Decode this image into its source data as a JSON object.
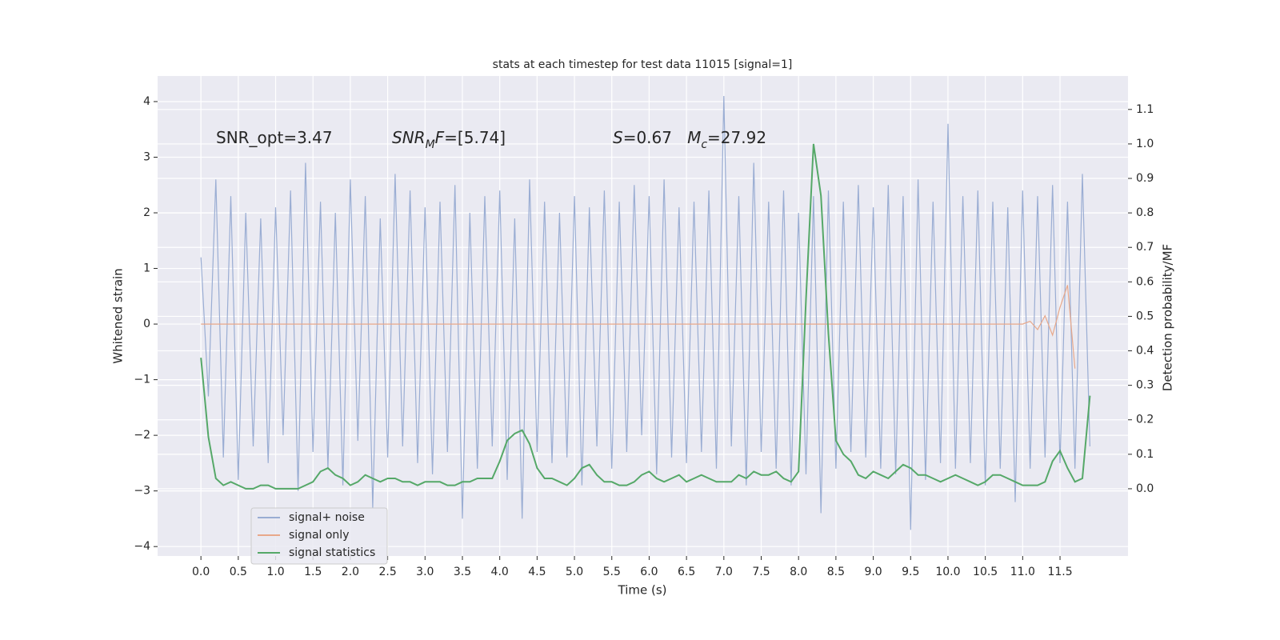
{
  "chart_data": {
    "type": "line",
    "title": "stats at each timestep for test data 11015 [signal=1]",
    "xlabel": "Time (s)",
    "ylabel": "Whitened strain",
    "y2label": "Detection probability/MF",
    "annotations": [
      [
        {
          "text": "SNR_opt=3.47"
        }
      ],
      [
        {
          "text": "SNR",
          "italic": true
        },
        {
          "text": "M",
          "italic": true,
          "sub": true
        },
        {
          "text": "F",
          "italic": true
        },
        {
          "text": "=[5.74]"
        }
      ],
      [
        {
          "text": "S",
          "italic": true
        },
        {
          "text": "=0.67   "
        },
        {
          "text": "M",
          "italic": true
        },
        {
          "text": "c",
          "italic": true,
          "sub": true
        },
        {
          "text": "=27.92"
        }
      ]
    ],
    "x": [
      0.0,
      0.1,
      0.2,
      0.3,
      0.4,
      0.5,
      0.6,
      0.7,
      0.8,
      0.9,
      1.0,
      1.1,
      1.2,
      1.3,
      1.4,
      1.5,
      1.6,
      1.7,
      1.8,
      1.9,
      2.0,
      2.1,
      2.2,
      2.3,
      2.4,
      2.5,
      2.6,
      2.7,
      2.8,
      2.9,
      3.0,
      3.1,
      3.2,
      3.3,
      3.4,
      3.5,
      3.6,
      3.7,
      3.8,
      3.9,
      4.0,
      4.1,
      4.2,
      4.3,
      4.4,
      4.5,
      4.6,
      4.7,
      4.8,
      4.9,
      5.0,
      5.1,
      5.2,
      5.3,
      5.4,
      5.5,
      5.6,
      5.7,
      5.8,
      5.9,
      6.0,
      6.1,
      6.2,
      6.3,
      6.4,
      6.5,
      6.6,
      6.7,
      6.8,
      6.9,
      7.0,
      7.1,
      7.2,
      7.3,
      7.4,
      7.5,
      7.6,
      7.7,
      7.8,
      7.9,
      8.0,
      8.1,
      8.2,
      8.3,
      8.4,
      8.5,
      8.6,
      8.7,
      8.8,
      8.9,
      9.0,
      9.1,
      9.2,
      9.3,
      9.4,
      9.5,
      9.6,
      9.7,
      9.8,
      9.9,
      10.0,
      10.1,
      10.2,
      10.3,
      10.4,
      10.5,
      10.6,
      10.7,
      10.8,
      10.9,
      11.0,
      11.1,
      11.2,
      11.3,
      11.4,
      11.5,
      11.6,
      11.7,
      11.8,
      11.9
    ],
    "series": [
      {
        "name": "signal+ noise",
        "color": "#9aadd3",
        "values": [
          1.2,
          -1.3,
          2.6,
          -2.4,
          2.3,
          -2.8,
          2.0,
          -2.2,
          1.9,
          -2.5,
          2.1,
          -2.0,
          2.4,
          -3.0,
          2.9,
          -2.3,
          2.2,
          -2.6,
          2.0,
          -2.9,
          2.6,
          -2.1,
          2.3,
          -3.3,
          1.9,
          -2.4,
          2.7,
          -2.2,
          2.4,
          -2.5,
          2.1,
          -2.7,
          2.2,
          -2.3,
          2.5,
          -3.5,
          2.0,
          -2.6,
          2.3,
          -2.2,
          2.4,
          -2.8,
          1.9,
          -3.5,
          2.6,
          -2.3,
          2.2,
          -2.5,
          2.0,
          -2.4,
          2.3,
          -2.9,
          2.1,
          -2.2,
          2.4,
          -2.6,
          2.2,
          -2.3,
          2.5,
          -2.0,
          2.3,
          -2.7,
          2.6,
          -2.4,
          2.1,
          -2.5,
          2.2,
          -2.3,
          2.4,
          -2.6,
          4.1,
          -2.2,
          2.3,
          -2.9,
          2.9,
          -2.3,
          2.2,
          -2.6,
          2.4,
          -2.9,
          2.0,
          -2.7,
          2.3,
          -3.4,
          2.4,
          -2.6,
          2.2,
          -2.3,
          2.5,
          -2.4,
          2.1,
          -2.6,
          2.5,
          -2.7,
          2.3,
          -3.7,
          2.6,
          -2.8,
          2.2,
          -2.5,
          3.6,
          -2.6,
          2.3,
          -2.5,
          2.4,
          -2.9,
          2.2,
          -2.6,
          2.1,
          -3.2,
          2.4,
          -2.6,
          2.3,
          -2.4,
          2.5,
          -2.5,
          2.2,
          -2.6,
          2.7,
          -2.2
        ]
      },
      {
        "name": "signal only",
        "color": "#e8a88a",
        "values": [
          0,
          0,
          0,
          0,
          0,
          0,
          0,
          0,
          0,
          0,
          0,
          0,
          0,
          0,
          0,
          0,
          0,
          0,
          0,
          0,
          0,
          0,
          0,
          0,
          0,
          0,
          0,
          0,
          0,
          0,
          0,
          0,
          0,
          0,
          0,
          0,
          0,
          0,
          0,
          0,
          0,
          0,
          0,
          0,
          0,
          0,
          0,
          0,
          0,
          0,
          0,
          0,
          0,
          0,
          0,
          0,
          0,
          0,
          0,
          0,
          0,
          0,
          0,
          0,
          0,
          0,
          0,
          0,
          0,
          0,
          0,
          0,
          0,
          0,
          0,
          0,
          0,
          0,
          0,
          0,
          0,
          0,
          0,
          0,
          0,
          0,
          0,
          0,
          0,
          0,
          0,
          0,
          0,
          0,
          0,
          0,
          0,
          0,
          0,
          0,
          0,
          0,
          0,
          0,
          0,
          0,
          0,
          0,
          0,
          0,
          0,
          0.05,
          -0.1,
          0.15,
          -0.2,
          0.3,
          0.7,
          -0.8,
          null,
          null
        ]
      },
      {
        "name": "signal statistics",
        "color": "#55a868",
        "axis": "y2",
        "values": [
          0.38,
          0.15,
          0.03,
          0.01,
          0.02,
          0.01,
          0.0,
          0.0,
          0.01,
          0.01,
          0,
          0,
          0,
          0,
          0.01,
          0.02,
          0.05,
          0.06,
          0.04,
          0.03,
          0.01,
          0.02,
          0.04,
          0.03,
          0.02,
          0.03,
          0.03,
          0.02,
          0.02,
          0.01,
          0.02,
          0.02,
          0.02,
          0.01,
          0.01,
          0.02,
          0.02,
          0.03,
          0.03,
          0.03,
          0.08,
          0.14,
          0.16,
          0.17,
          0.13,
          0.06,
          0.03,
          0.03,
          0.02,
          0.01,
          0.03,
          0.06,
          0.07,
          0.04,
          0.02,
          0.02,
          0.01,
          0.01,
          0.02,
          0.04,
          0.05,
          0.03,
          0.02,
          0.03,
          0.04,
          0.02,
          0.03,
          0.04,
          0.03,
          0.02,
          0.02,
          0.02,
          0.04,
          0.03,
          0.05,
          0.04,
          0.04,
          0.05,
          0.03,
          0.02,
          0.05,
          0.55,
          1.0,
          0.85,
          0.45,
          0.14,
          0.1,
          0.08,
          0.04,
          0.03,
          0.05,
          0.04,
          0.03,
          0.05,
          0.07,
          0.06,
          0.04,
          0.04,
          0.03,
          0.02,
          0.03,
          0.04,
          0.03,
          0.02,
          0.01,
          0.02,
          0.04,
          0.04,
          0.03,
          0.02,
          0.01,
          0.01,
          0.01,
          0.02,
          0.08,
          0.11,
          0.06,
          0.02,
          0.03,
          0.27
        ]
      }
    ],
    "xlim": [
      -0.58,
      12.41
    ],
    "ylim": [
      -4.17,
      4.46
    ],
    "y2lim": [
      -0.195,
      1.197
    ],
    "xticks": [
      {
        "value": 0,
        "label": "0.0"
      },
      0.5,
      {
        "value": 1,
        "label": "1.0"
      },
      1.5,
      {
        "value": 2,
        "label": "2.0"
      },
      2.5,
      {
        "value": 3,
        "label": "3.0"
      },
      3.5,
      {
        "value": 4,
        "label": "4.0"
      },
      4.5,
      {
        "value": 5,
        "label": "5.0"
      },
      5.5,
      {
        "value": 6,
        "label": "6.0"
      },
      6.5,
      {
        "value": 7,
        "label": "7.0"
      },
      7.5,
      {
        "value": 8,
        "label": "8.0"
      },
      8.5,
      {
        "value": 9,
        "label": "9.0"
      },
      9.5,
      {
        "value": 10,
        "label": "10.0"
      },
      10.5,
      {
        "value": 11,
        "label": "11.0"
      },
      11.5
    ],
    "yticks": [
      {
        "value": -4,
        "label": "−4"
      },
      {
        "value": -3,
        "label": "−3"
      },
      {
        "value": -2,
        "label": "−2"
      },
      {
        "value": -1,
        "label": "−1"
      },
      0,
      1,
      2,
      3,
      4
    ],
    "y2ticks": [
      {
        "value": 0,
        "label": "0.0"
      },
      0.1,
      0.2,
      0.3,
      0.4,
      0.5,
      0.6,
      0.7,
      0.8,
      0.9,
      {
        "value": 1,
        "label": "1.0"
      },
      1.1
    ],
    "grid": true,
    "background": "#eaeaf2",
    "legend": "lower left"
  }
}
